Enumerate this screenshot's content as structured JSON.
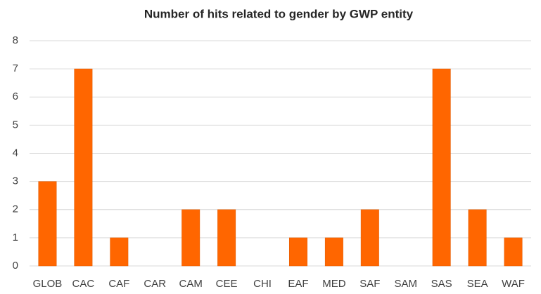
{
  "chart_data": {
    "type": "bar",
    "title": "Number of hits related to gender by GWP entity",
    "categories": [
      "GLOB",
      "CAC",
      "CAF",
      "CAR",
      "CAM",
      "CEE",
      "CHI",
      "EAF",
      "MED",
      "SAF",
      "SAM",
      "SAS",
      "SEA",
      "WAF"
    ],
    "values": [
      3,
      7,
      1,
      0,
      2,
      2,
      0,
      1,
      1,
      2,
      0,
      7,
      2,
      1
    ],
    "color": "#ff6600",
    "ylim": [
      0,
      8
    ],
    "yticks": [
      0,
      1,
      2,
      3,
      4,
      5,
      6,
      7,
      8
    ],
    "grid": true
  }
}
